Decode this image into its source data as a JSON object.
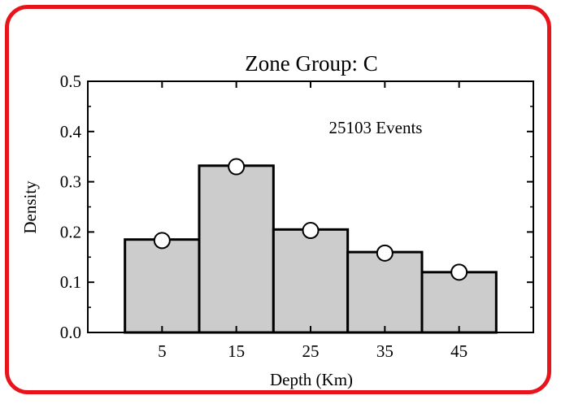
{
  "frame_color": "#e8141c",
  "chart_data": {
    "type": "bar",
    "title": "Zone Group: C",
    "xlabel": "Depth (Km)",
    "ylabel": "Density",
    "annotation": "25103 Events",
    "categories": [
      "5",
      "15",
      "25",
      "35",
      "45"
    ],
    "x": [
      5,
      15,
      25,
      35,
      45
    ],
    "bin_edges": [
      0,
      10,
      20,
      30,
      40,
      50
    ],
    "values": [
      0.185,
      0.332,
      0.205,
      0.16,
      0.12
    ],
    "points": [
      0.183,
      0.33,
      0.203,
      0.158,
      0.12
    ],
    "xlim": [
      -5,
      55
    ],
    "ylim": [
      0.0,
      0.5
    ],
    "yticks": [
      "0.0",
      "0.1",
      "0.2",
      "0.3",
      "0.4",
      "0.5"
    ],
    "bar_color": "#cccccc",
    "grid": false
  }
}
